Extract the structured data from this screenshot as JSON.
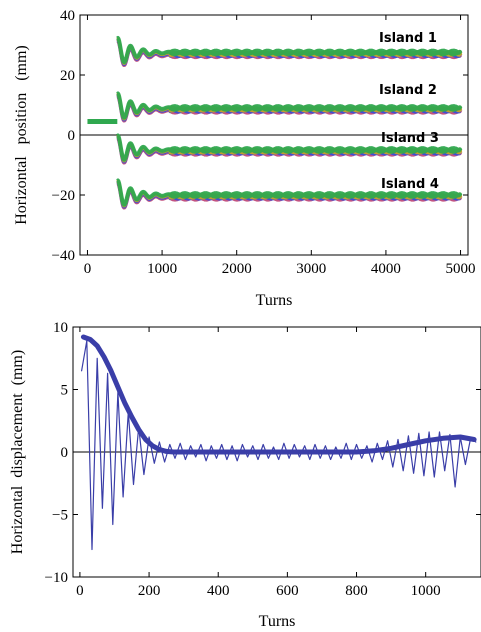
{
  "chart_data": [
    {
      "type": "scatter",
      "title": "",
      "xlabel": "Turns",
      "ylabel": "Horizontal   position   (mm)",
      "xlim": [
        -100,
        5100
      ],
      "ylim": [
        -40,
        40
      ],
      "xticks": [
        0,
        1000,
        2000,
        3000,
        4000,
        5000
      ],
      "yticks": [
        40,
        20,
        0,
        -20,
        -40
      ],
      "xtick_labels": [
        "0",
        "1000",
        "2000",
        "3000",
        "4000",
        "5000"
      ],
      "ytick_labels": [
        "40",
        "20",
        "0",
        "−20",
        "−40"
      ],
      "annotations": [
        "Island 1",
        "Island 2",
        "Island 3",
        "Island 4"
      ],
      "reference_line_y": 0,
      "grid": false,
      "series": [
        {
          "start_turn": 0,
          "end_turn": 400,
          "values_mm": [
            4.5,
            4.5
          ]
        },
        {
          "onset_turn": 400,
          "end_turn": 5000,
          "oscillation_amplitude_mm": 5,
          "decay_until_turn": 1100,
          "settled_mm": 27
        },
        {
          "onset_turn": 400,
          "end_turn": 5000,
          "oscillation_amplitude_mm": 5,
          "decay_until_turn": 1100,
          "settled_mm": 8.5
        },
        {
          "onset_turn": 400,
          "end_turn": 5000,
          "oscillation_amplitude_mm": 5,
          "decay_until_turn": 1100,
          "settled_mm": -5.5
        },
        {
          "onset_turn": 400,
          "end_turn": 5000,
          "oscillation_amplitude_mm": 5,
          "decay_until_turn": 1100,
          "settled_mm": -20.5
        }
      ],
      "colors": {
        "primary": "#2fa84f",
        "secondary": "#c9a227",
        "tertiary": "#3b4fd8",
        "quaternary": "#c04a7a"
      }
    },
    {
      "type": "line",
      "title": "",
      "xlabel": "Turns",
      "ylabel": "Horizontal  displacement  (mm)",
      "xlim": [
        -20,
        1160
      ],
      "ylim": [
        -10,
        10
      ],
      "xticks": [
        0,
        200,
        400,
        600,
        800,
        1000
      ],
      "yticks": [
        10,
        5,
        0,
        -5,
        -10
      ],
      "xtick_labels": [
        "0",
        "200",
        "400",
        "600",
        "800",
        "1000"
      ],
      "ytick_labels": [
        "10",
        "5",
        "0",
        "−5",
        "−10"
      ],
      "reference_line_y": 0,
      "grid": false,
      "series": [
        {
          "style": "thin",
          "x": [
            5,
            20,
            35,
            50,
            65,
            80,
            95,
            110,
            125,
            140,
            155,
            170,
            185,
            200,
            215,
            230,
            245,
            260,
            275,
            290,
            305,
            320,
            335,
            350,
            365,
            380,
            395,
            410,
            425,
            440,
            455,
            470,
            485,
            500,
            515,
            530,
            545,
            560,
            575,
            590,
            605,
            620,
            635,
            650,
            665,
            680,
            695,
            710,
            725,
            740,
            755,
            770,
            785,
            800,
            815,
            830,
            845,
            860,
            875,
            890,
            905,
            920,
            935,
            950,
            965,
            980,
            995,
            1010,
            1025,
            1040,
            1055,
            1070,
            1085,
            1100,
            1115,
            1130,
            1145
          ],
          "y": [
            6.5,
            8.9,
            -7.8,
            7.5,
            -4.5,
            6.3,
            -5.8,
            4.8,
            -3.6,
            3.2,
            -2.6,
            2.0,
            -1.8,
            1.2,
            -0.9,
            0.8,
            -0.8,
            0.6,
            -0.5,
            0.7,
            -0.6,
            0.5,
            -0.4,
            0.6,
            -0.7,
            0.5,
            -0.5,
            0.6,
            -0.6,
            0.5,
            -0.7,
            0.6,
            -0.4,
            0.5,
            -0.6,
            0.6,
            -0.5,
            0.4,
            -0.6,
            0.7,
            -0.5,
            0.6,
            -0.4,
            0.5,
            -0.6,
            0.6,
            -0.5,
            0.5,
            -0.6,
            0.4,
            -0.5,
            0.7,
            -0.6,
            0.6,
            -0.5,
            0.5,
            -0.8,
            0.7,
            -0.6,
            0.9,
            -1.2,
            1.0,
            -1.5,
            1.3,
            -1.7,
            1.5,
            -1.9,
            1.6,
            -2.0,
            1.6,
            -1.5,
            1.4,
            -2.8,
            1.2,
            -1.0,
            1.1,
            0.8
          ]
        },
        {
          "style": "thick",
          "x": [
            10,
            30,
            50,
            70,
            90,
            110,
            130,
            150,
            170,
            190,
            210,
            230,
            250,
            270,
            300,
            350,
            400,
            450,
            500,
            550,
            600,
            650,
            700,
            750,
            800,
            850,
            900,
            950,
            1000,
            1050,
            1100,
            1140
          ],
          "y": [
            9.2,
            9.0,
            8.5,
            7.6,
            6.5,
            5.2,
            3.9,
            2.8,
            1.8,
            1.0,
            0.5,
            0.2,
            0.05,
            0.0,
            0.0,
            0.0,
            0.0,
            0.0,
            0.0,
            0.0,
            0.0,
            0.0,
            0.0,
            0.0,
            0.0,
            0.1,
            0.3,
            0.6,
            0.9,
            1.1,
            1.2,
            1.0
          ]
        }
      ],
      "colors": {
        "line": "#3a3ea8"
      }
    }
  ]
}
